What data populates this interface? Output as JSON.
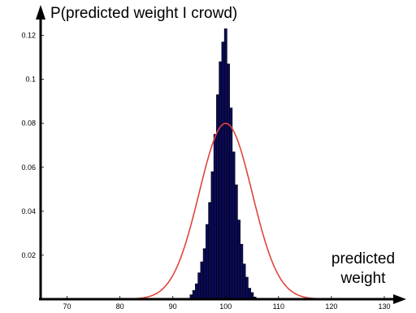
{
  "chart_data": {
    "type": "bar",
    "title": "P(predicted weight I crowd)",
    "xlabel_line1": "predicted",
    "xlabel_line2": "weight",
    "xlim": [
      65,
      132
    ],
    "ylim": [
      0,
      0.125
    ],
    "x_ticks": [
      70,
      80,
      90,
      100,
      110,
      120,
      130
    ],
    "y_ticks": [
      0.02,
      0.04,
      0.06,
      0.08,
      0.1,
      0.12
    ],
    "y_tick_labels": [
      "0.02",
      "0.04",
      "0.06",
      "0.08",
      "0.1",
      "0.12"
    ],
    "histogram": {
      "bin_width": 0.5,
      "bins_x": [
        93.5,
        94,
        94.5,
        95,
        95.5,
        96,
        96.5,
        97,
        97.5,
        98,
        98.5,
        99,
        99.5,
        100,
        100.5,
        101,
        101.5,
        102,
        102.5,
        103,
        103.5,
        104,
        104.5,
        105,
        105.5
      ],
      "values": [
        0.002,
        0.004,
        0.007,
        0.012,
        0.017,
        0.023,
        0.034,
        0.044,
        0.058,
        0.075,
        0.093,
        0.108,
        0.117,
        0.123,
        0.107,
        0.087,
        0.067,
        0.052,
        0.036,
        0.025,
        0.016,
        0.01,
        0.005,
        0.003,
        0.001
      ]
    },
    "curve": {
      "type": "normal",
      "mean": 100,
      "peak": 0.08,
      "sd": 5,
      "color": "#e0443c"
    },
    "bar_color": "#0a0a5a"
  }
}
